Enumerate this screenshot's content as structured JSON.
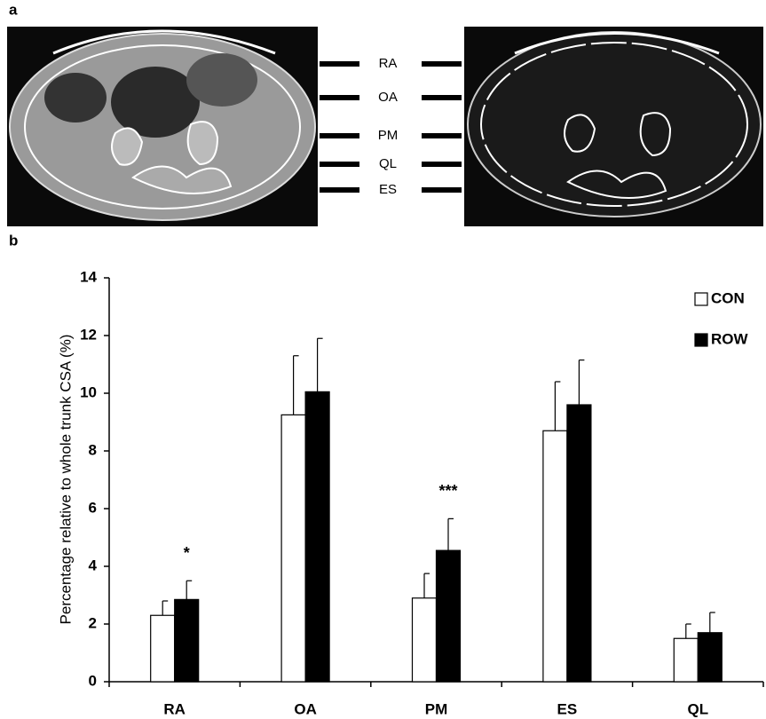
{
  "panel_labels": [
    "a",
    "b"
  ],
  "image_labels": [
    "RA",
    "OA",
    "PM",
    "QL",
    "ES"
  ],
  "chart_data": {
    "type": "bar",
    "ylabel": "Percentage relative to whole trunk CSA (%)",
    "categories": [
      "RA",
      "OA",
      "PM",
      "ES",
      "QL"
    ],
    "series": [
      {
        "name": "CON",
        "color": "#ffffff",
        "values": [
          2.3,
          9.25,
          2.9,
          8.7,
          1.5
        ],
        "errors": [
          0.5,
          2.05,
          0.85,
          1.7,
          0.5
        ]
      },
      {
        "name": "ROW",
        "color": "#000000",
        "values": [
          2.85,
          10.05,
          4.55,
          9.6,
          1.7
        ],
        "errors": [
          0.65,
          1.85,
          1.1,
          1.55,
          0.7
        ]
      }
    ],
    "ylim": [
      0,
      14
    ],
    "yticks": [
      0,
      2,
      4,
      6,
      8,
      10,
      12,
      14
    ],
    "legend": "top-right",
    "annotations": [
      {
        "text": "*",
        "category": "RA",
        "series": "ROW"
      },
      {
        "text": "***",
        "category": "PM",
        "series": "ROW"
      }
    ]
  }
}
